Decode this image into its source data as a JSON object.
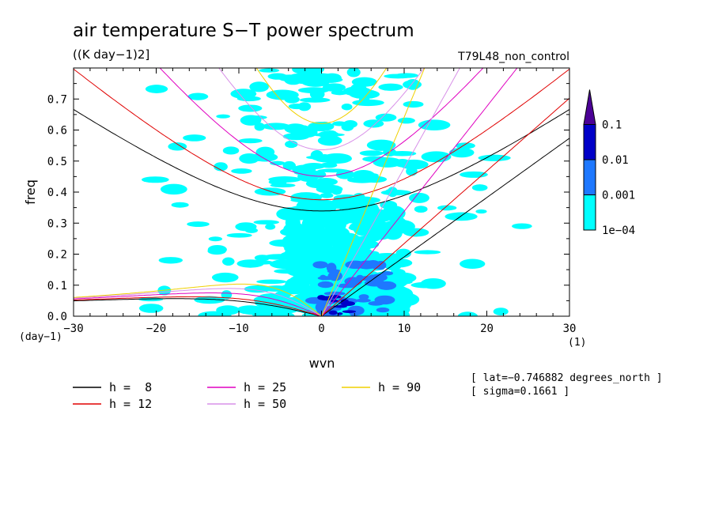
{
  "chart_data": {
    "type": "heatmap",
    "title": "air temperature S−T power spectrum",
    "units_label": "((K day−1)2]",
    "run_label": "T79L48_non_control",
    "xlabel": "wvn",
    "ylabel": "freq",
    "x_unit_label": "(1)",
    "y_unit_label": "(day−1)",
    "xlim": [
      -30,
      30
    ],
    "ylim": [
      0,
      0.8
    ],
    "x_ticks": [
      -30,
      -20,
      -10,
      0,
      10,
      20,
      30
    ],
    "y_ticks": [
      0.0,
      0.1,
      0.2,
      0.3,
      0.4,
      0.5,
      0.6,
      0.7
    ],
    "x_tick_labels": [
      "−30",
      "−20",
      "−10",
      "0",
      "10",
      "20",
      "30"
    ],
    "y_tick_labels": [
      "0.0",
      "0.1",
      "0.2",
      "0.3",
      "0.4",
      "0.5",
      "0.6",
      "0.7"
    ],
    "colorbar": {
      "levels": [
        0.0001,
        0.001,
        0.01,
        0.1
      ],
      "labels": [
        "1e−04",
        "0.001",
        "0.01",
        "0.1"
      ],
      "colors": [
        "#00ffff",
        "#1e78ff",
        "#0000c8",
        "#4b0096"
      ],
      "extend": "max"
    },
    "dispersion_curves": [
      {
        "label": "h =  8",
        "h": 8,
        "color": "#000000"
      },
      {
        "label": "h = 12",
        "h": 12,
        "color": "#e00000"
      },
      {
        "label": "h = 25",
        "h": 25,
        "color": "#e000c0"
      },
      {
        "label": "h = 50",
        "h": 50,
        "color": "#d890e8"
      },
      {
        "label": "h = 90",
        "h": 90,
        "color": "#f0d000"
      }
    ],
    "annotations": [
      "[ lat=−0.746882 degrees_north ]",
      "[ sigma=0.1661 ]"
    ]
  }
}
